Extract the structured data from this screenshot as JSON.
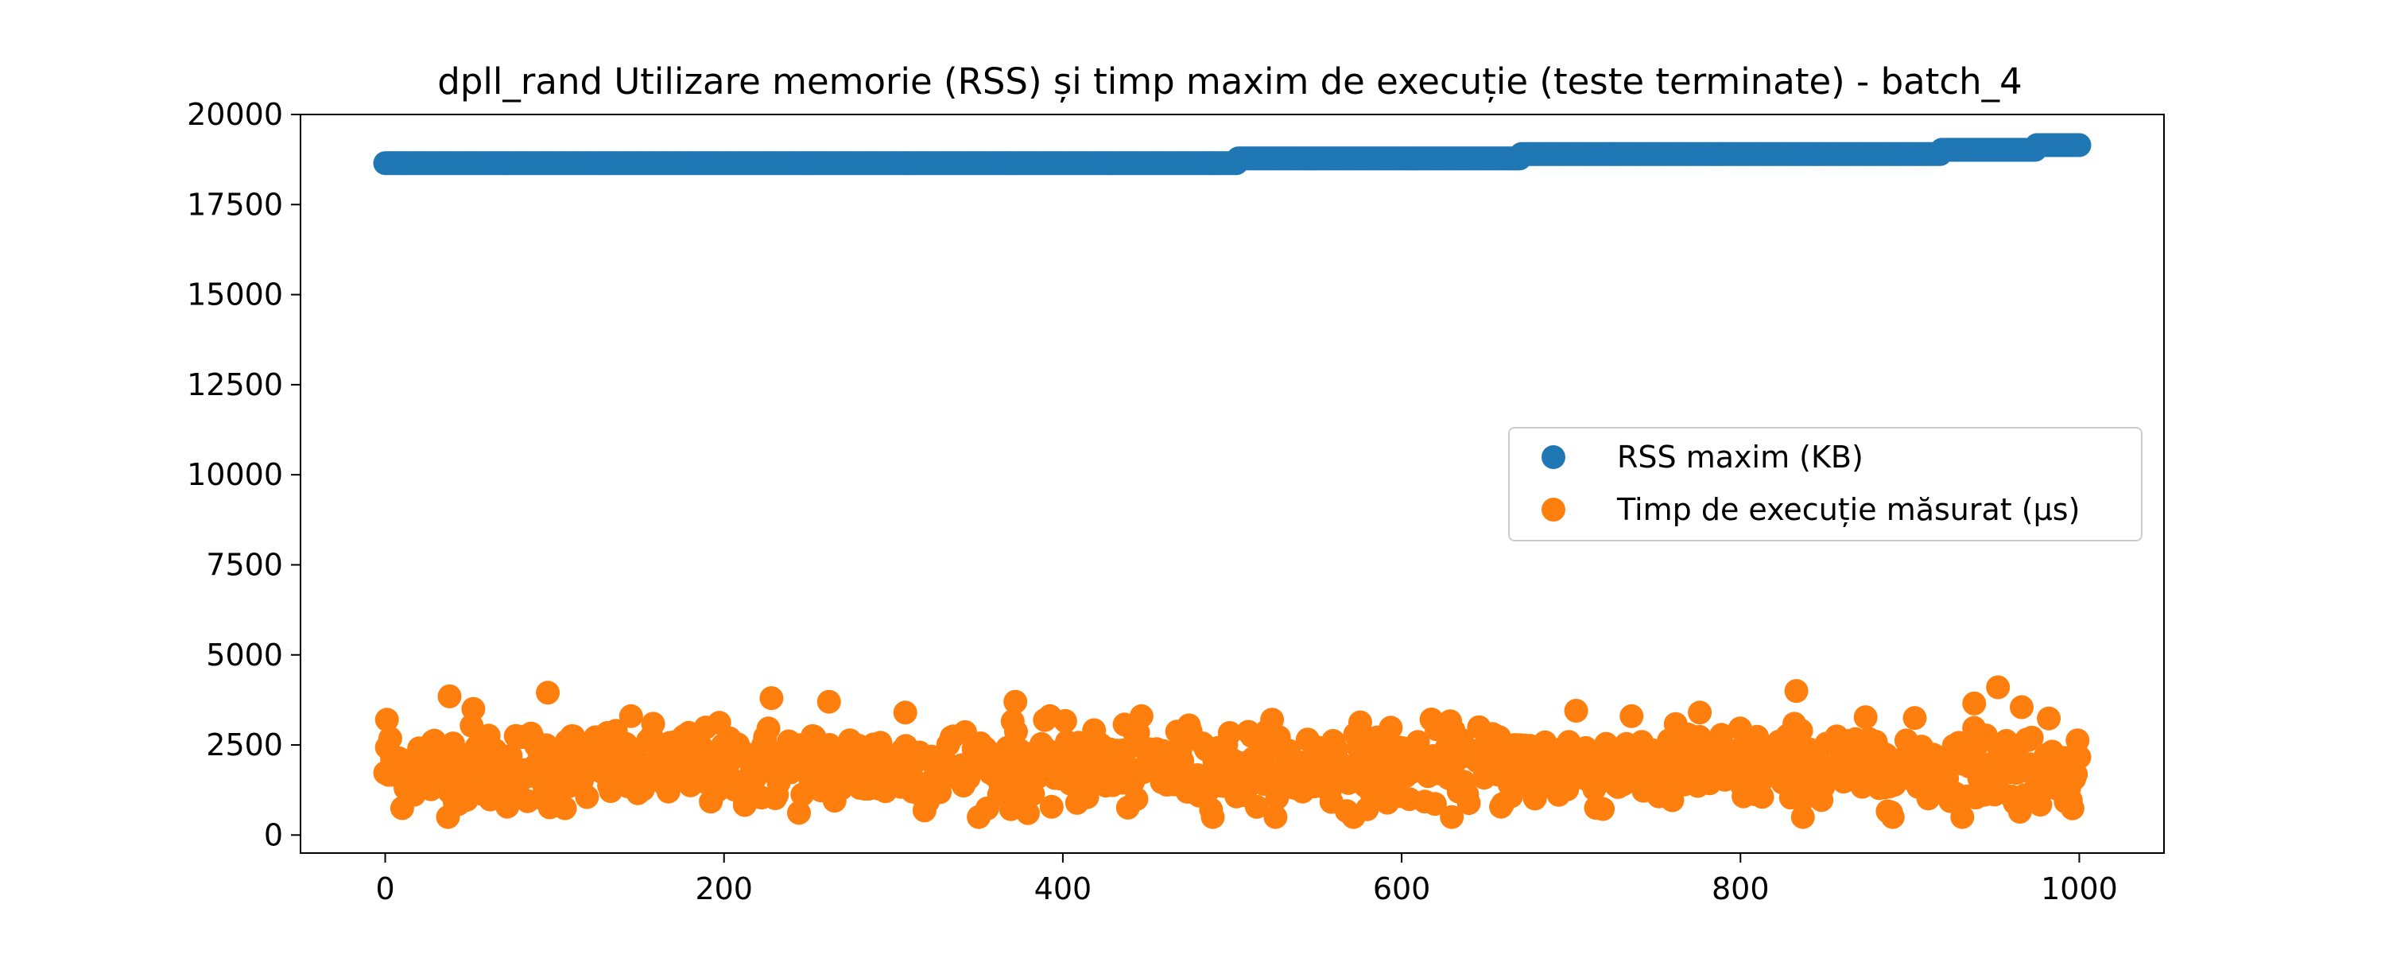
{
  "chart_data": {
    "type": "scatter",
    "title": "dpll_rand Utilizare memorie (RSS) și timp maxim de execuție (teste terminate) - batch_4",
    "xlabel": "",
    "ylabel": "",
    "xlim": [
      -50,
      1050
    ],
    "ylim": [
      -500,
      20000
    ],
    "x_ticks": [
      0,
      200,
      400,
      600,
      800,
      1000
    ],
    "y_ticks": [
      0,
      2500,
      5000,
      7500,
      10000,
      12500,
      15000,
      17500,
      20000
    ],
    "x_tick_labels": [
      "0",
      "200",
      "400",
      "600",
      "800",
      "1000"
    ],
    "y_tick_labels": [
      "0",
      "2500",
      "5000",
      "7500",
      "10000",
      "12500",
      "15000",
      "17500",
      "20000"
    ],
    "grid": false,
    "legend_position": "center-right",
    "series": [
      {
        "name": "RSS maxim (KB)",
        "color": "#1f77b4",
        "x_range": [
          0,
          1000
        ],
        "points_count": 1000,
        "steps": [
          {
            "x_start": 0,
            "x_end": 503,
            "y": 18650
          },
          {
            "x_start": 503,
            "x_end": 670,
            "y": 18780
          },
          {
            "x_start": 670,
            "x_end": 918,
            "y": 18900
          },
          {
            "x_start": 918,
            "x_end": 974,
            "y": 19020
          },
          {
            "x_start": 974,
            "x_end": 1000,
            "y": 19150
          }
        ]
      },
      {
        "name": "Timp de execuție măsurat (μs)",
        "color": "#ff7f0e",
        "x_range": [
          0,
          1000
        ],
        "points_count": 1000,
        "typical_range": [
          500,
          3000
        ],
        "center": 1900,
        "outliers": [
          {
            "x": 38,
            "y": 3850
          },
          {
            "x": 96,
            "y": 3950
          },
          {
            "x": 228,
            "y": 3800
          },
          {
            "x": 262,
            "y": 3700
          },
          {
            "x": 372,
            "y": 3700
          },
          {
            "x": 833,
            "y": 4000
          },
          {
            "x": 952,
            "y": 4100
          },
          {
            "x": 966,
            "y": 3550
          },
          {
            "x": 938,
            "y": 3650
          },
          {
            "x": 52,
            "y": 3500
          },
          {
            "x": 1,
            "y": 3200
          },
          {
            "x": 307,
            "y": 3400
          },
          {
            "x": 703,
            "y": 3450
          },
          {
            "x": 776,
            "y": 3400
          }
        ]
      }
    ]
  }
}
